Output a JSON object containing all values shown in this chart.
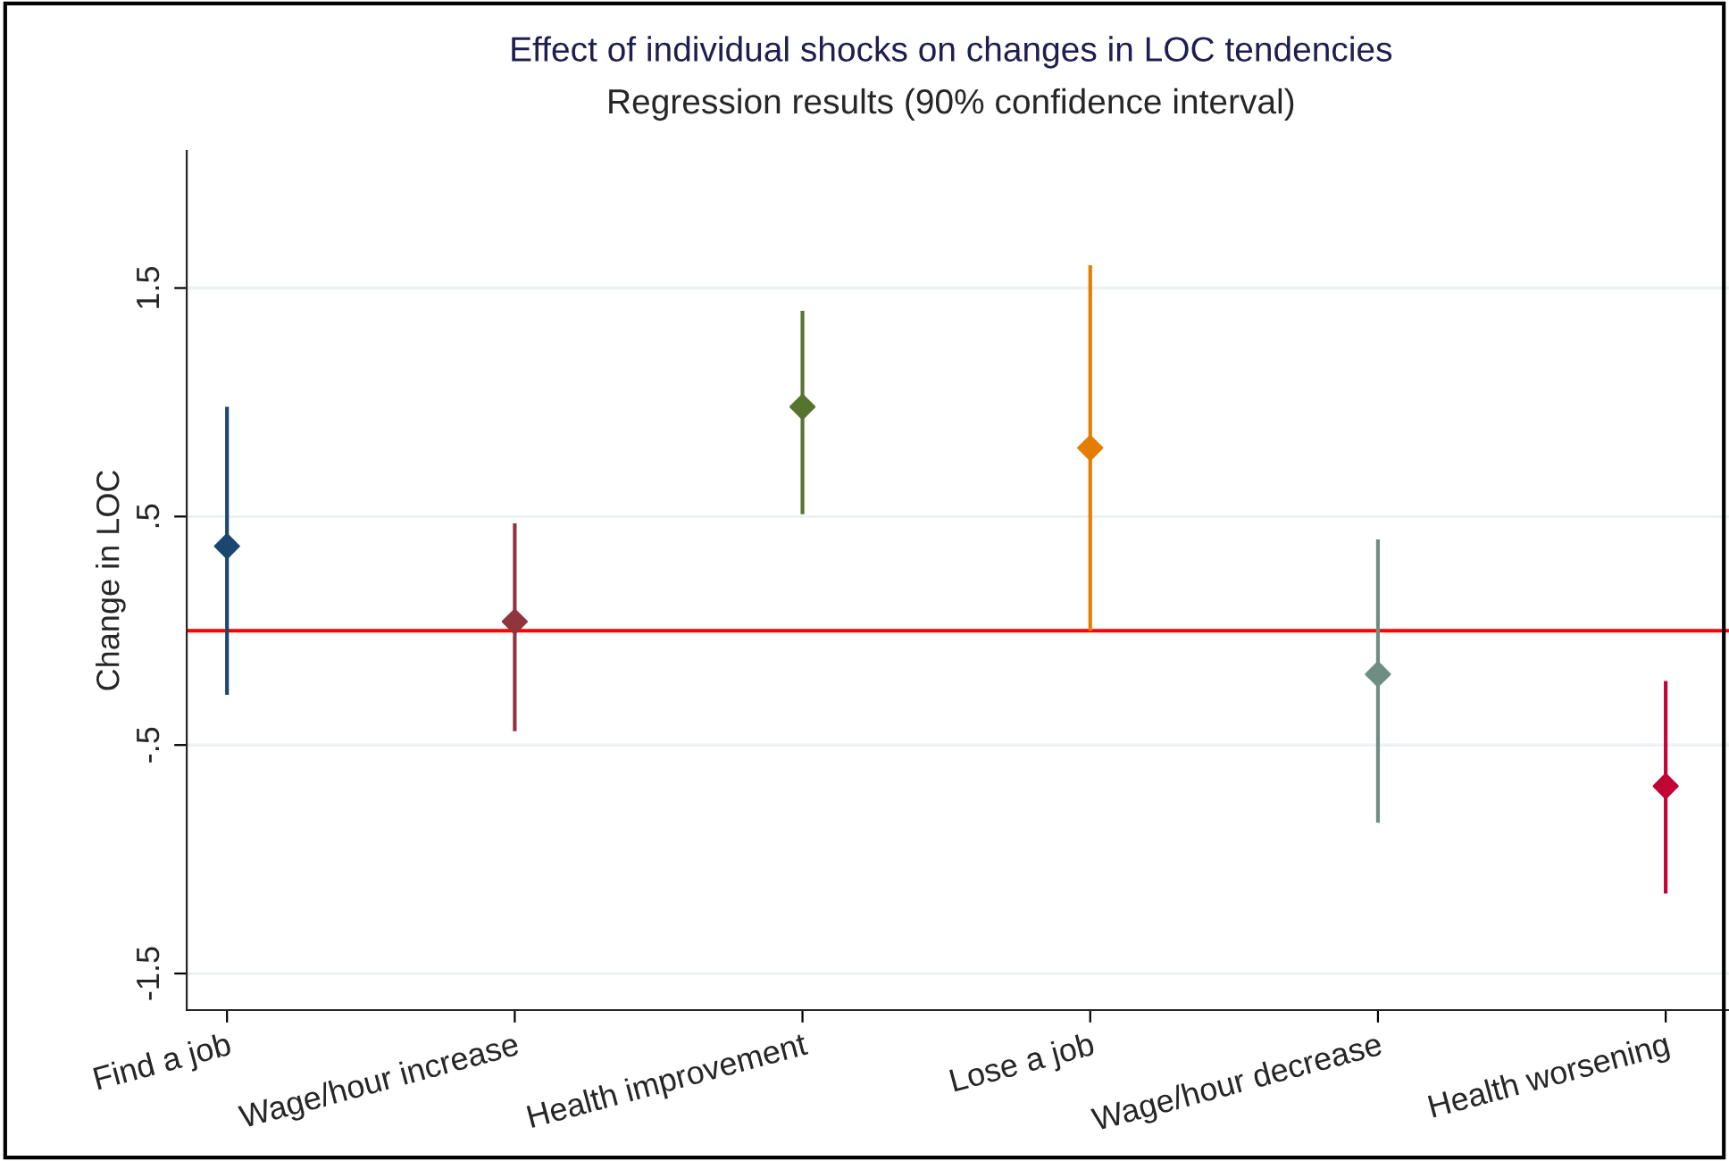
{
  "chart_data": {
    "type": "scatter",
    "title": "Effect of individual shocks on changes in LOC tendencies",
    "subtitle": "Regression results (90% confidence interval)",
    "ylabel": "Change in LOC",
    "categories": [
      "Find a job",
      "Wage/hour increase",
      "Health improvement",
      "Lose a job",
      "Wage/hour decrease",
      "Health worsening"
    ],
    "values": [
      0.37,
      0.04,
      0.98,
      0.8,
      -0.19,
      -0.68
    ],
    "errors": [
      [
        -0.28,
        0.98
      ],
      [
        -0.44,
        0.47
      ],
      [
        0.51,
        1.4
      ],
      [
        0,
        1.6
      ],
      [
        -0.84,
        0.4
      ],
      [
        -1.15,
        -0.22
      ]
    ],
    "colors": [
      "#1a476f",
      "#90353b",
      "#55752f",
      "#e37e00",
      "#6e8e84",
      "#c10534"
    ],
    "marker": "diamond",
    "ylim": [
      -1.66,
      2.1
    ],
    "yticks": [
      {
        "value": -1.5,
        "label": "-1.5"
      },
      {
        "value": -0.5,
        "label": "-.5"
      },
      {
        "value": 0.5,
        "label": ".5"
      },
      {
        "value": 1.5,
        "label": "1.5"
      }
    ],
    "grid": "y",
    "ref_lines": [
      {
        "axis": "y",
        "value": 0,
        "color": "#ff0000"
      }
    ]
  }
}
